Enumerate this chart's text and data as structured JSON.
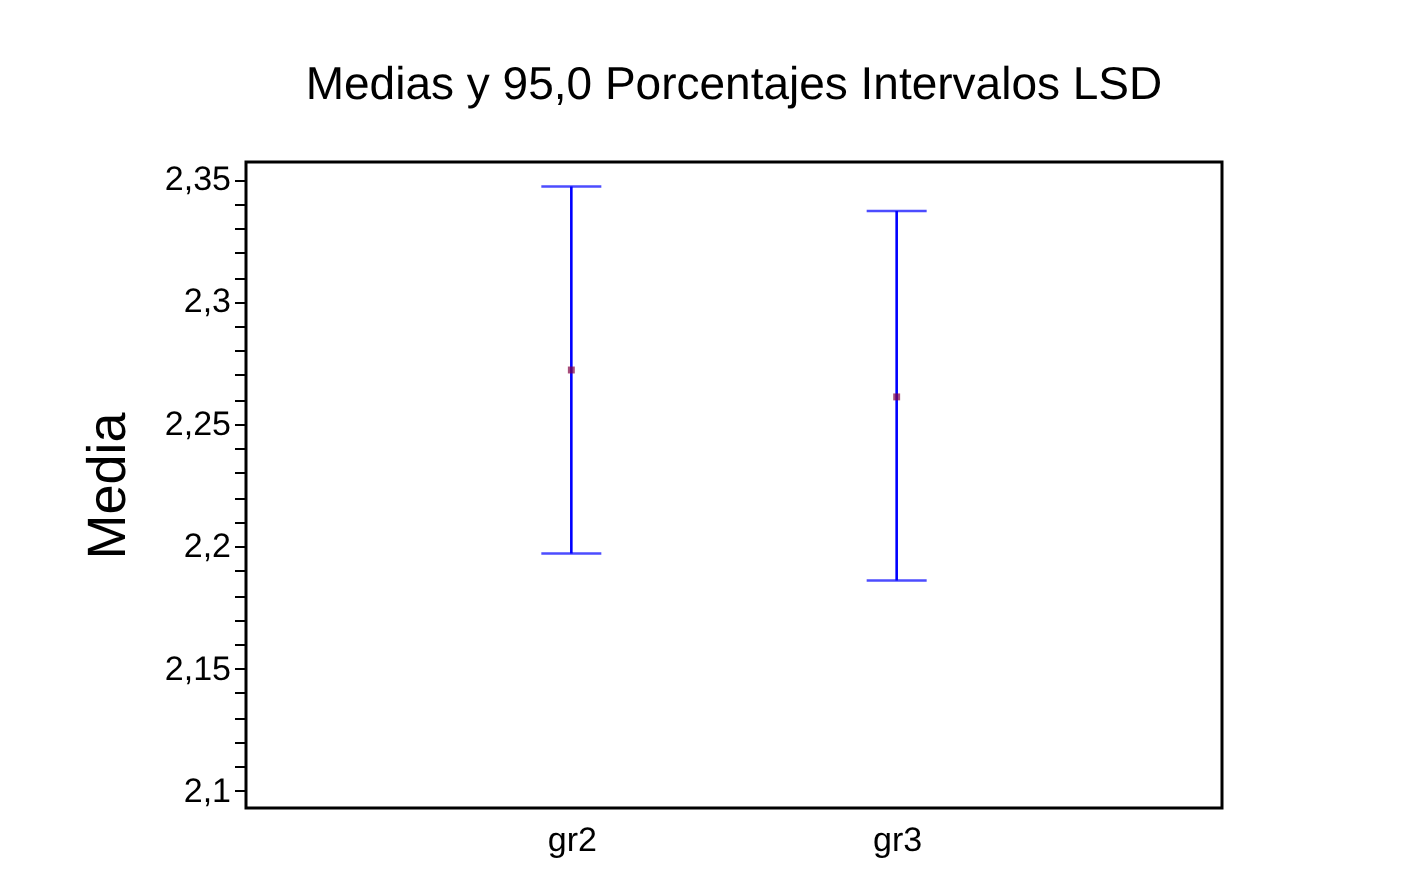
{
  "chart_data": {
    "type": "scatter",
    "title": "Medias y 95,0 Porcentajes Intervalos LSD",
    "ylabel": "Media",
    "categories": [
      "gr2",
      "gr3"
    ],
    "series": [
      {
        "color": "#800040",
        "values": [
          2.272,
          2.261
        ],
        "errors": [
          [
            2.197,
            2.347
          ],
          [
            2.186,
            2.337
          ]
        ]
      }
    ],
    "marker": "square",
    "ylim": [
      2.093,
      2.357
    ],
    "yticks": [
      {
        "value": 2.1,
        "label": "2,1"
      },
      {
        "value": 2.11,
        "label": null
      },
      {
        "value": 2.12,
        "label": null
      },
      {
        "value": 2.13,
        "label": null
      },
      {
        "value": 2.14,
        "label": null
      },
      {
        "value": 2.15,
        "label": "2,15"
      },
      {
        "value": 2.16,
        "label": null
      },
      {
        "value": 2.17,
        "label": null
      },
      {
        "value": 2.18,
        "label": null
      },
      {
        "value": 2.19,
        "label": null
      },
      {
        "value": 2.2,
        "label": "2,2"
      },
      {
        "value": 2.21,
        "label": null
      },
      {
        "value": 2.22,
        "label": null
      },
      {
        "value": 2.23,
        "label": null
      },
      {
        "value": 2.24,
        "label": null
      },
      {
        "value": 2.25,
        "label": "2,25"
      },
      {
        "value": 2.26,
        "label": null
      },
      {
        "value": 2.27,
        "label": null
      },
      {
        "value": 2.28,
        "label": null
      },
      {
        "value": 2.29,
        "label": null
      },
      {
        "value": 2.3,
        "label": "2,3"
      },
      {
        "value": 2.31,
        "label": null
      },
      {
        "value": 2.32,
        "label": null
      },
      {
        "value": 2.33,
        "label": null
      },
      {
        "value": 2.34,
        "label": null
      },
      {
        "value": 2.35,
        "label": "2,35"
      }
    ]
  }
}
